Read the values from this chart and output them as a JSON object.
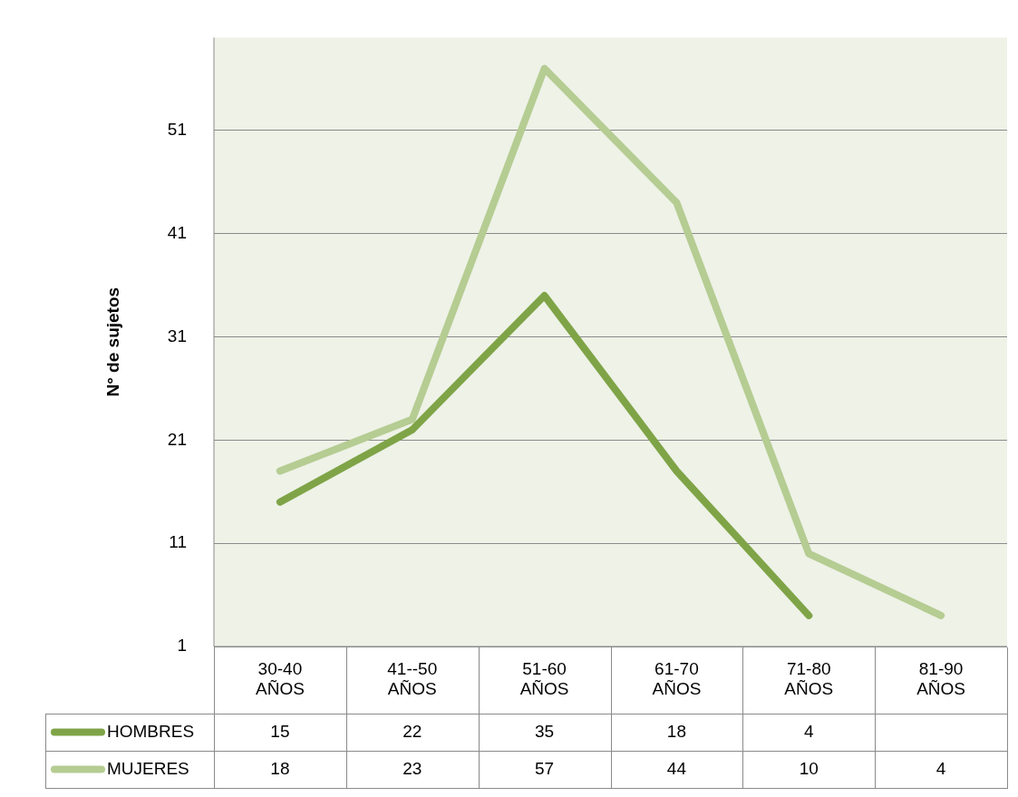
{
  "chart_data": {
    "type": "line",
    "ylabel": "N° de sujetos",
    "categories": [
      "30-40 AÑOS",
      "41--50 AÑOS",
      "51-60 AÑOS",
      "61-70 AÑOS",
      "71-80 AÑOS",
      "81-90 AÑOS"
    ],
    "series": [
      {
        "name": "HOMBRES",
        "color": "#7fa447",
        "values": [
          15,
          22,
          35,
          18,
          4,
          null
        ]
      },
      {
        "name": "MUJERES",
        "color": "#b5cc92",
        "values": [
          18,
          23,
          57,
          44,
          10,
          4
        ]
      }
    ],
    "ylim": [
      1,
      60
    ],
    "yticks": [
      1,
      11,
      21,
      31,
      41,
      51
    ],
    "grid": "y",
    "legend": "bottom",
    "data_labels": true,
    "marker": "none",
    "line_style": "solid"
  }
}
